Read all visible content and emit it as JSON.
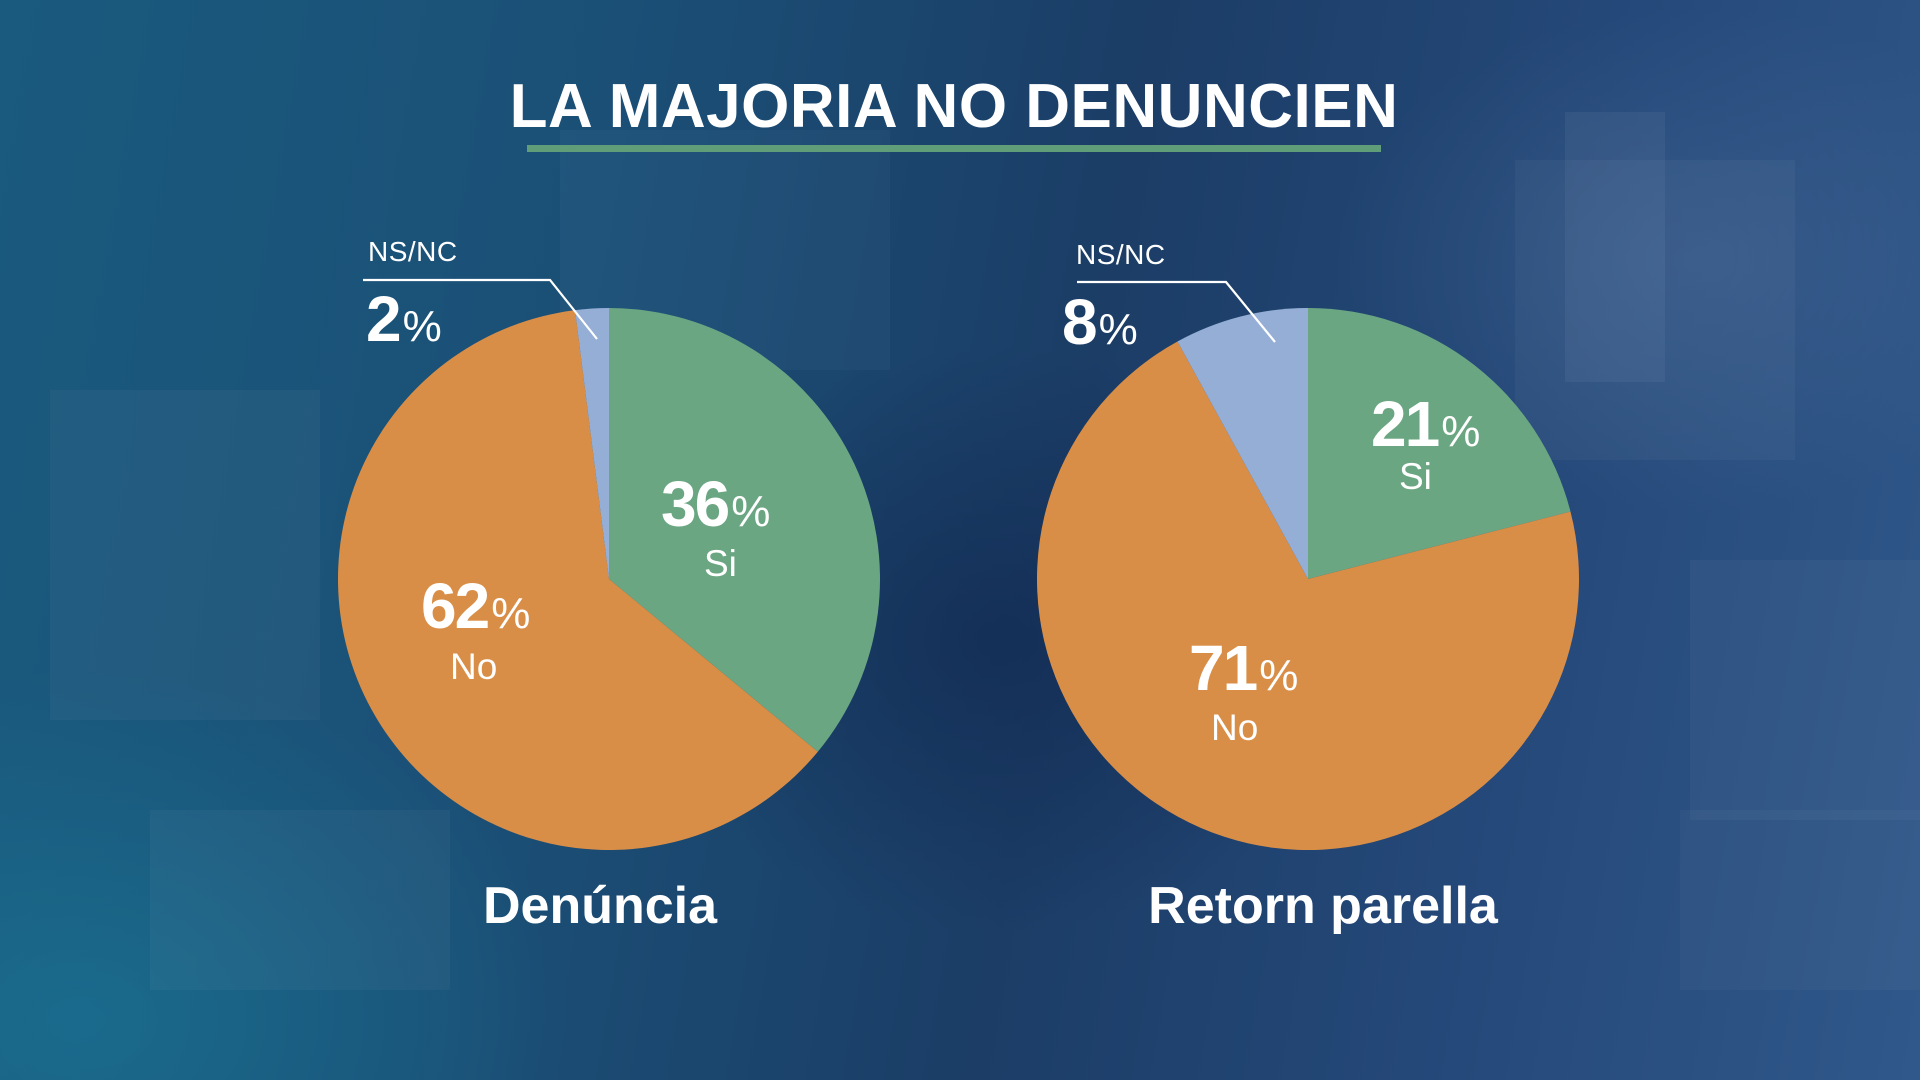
{
  "title": "LA MAJORIA NO DENUNCIEN",
  "colors": {
    "si": "#6aa682",
    "no": "#d98e47",
    "nsnc": "#95aed6",
    "accent_underline": "#5f9e78",
    "text": "#ffffff"
  },
  "percent_sign": "%",
  "charts": [
    {
      "caption": "Denúncia",
      "slices": [
        {
          "key": "si",
          "label": "Si",
          "value": 36,
          "display": "36"
        },
        {
          "key": "no",
          "label": "No",
          "value": 62,
          "display": "62"
        },
        {
          "key": "nsnc",
          "label": "NS/NC",
          "value": 2,
          "display": "2"
        }
      ]
    },
    {
      "caption": "Retorn parella",
      "slices": [
        {
          "key": "si",
          "label": "Si",
          "value": 21,
          "display": "21"
        },
        {
          "key": "no",
          "label": "No",
          "value": 71,
          "display": "71"
        },
        {
          "key": "nsnc",
          "label": "NS/NC",
          "value": 8,
          "display": "8"
        }
      ]
    }
  ],
  "chart_data": [
    {
      "type": "pie",
      "title": "LA MAJORIA NO DENUNCIEN",
      "subtitle": "Denúncia",
      "categories": [
        "Si",
        "No",
        "NS/NC"
      ],
      "values": [
        36,
        62,
        2
      ],
      "unit": "%",
      "colors": [
        "#6aa682",
        "#d98e47",
        "#95aed6"
      ],
      "start_angle": "top, clockwise",
      "legend": "none (direct labels)"
    },
    {
      "type": "pie",
      "title": "LA MAJORIA NO DENUNCIEN",
      "subtitle": "Retorn parella",
      "categories": [
        "Si",
        "No",
        "NS/NC"
      ],
      "values": [
        21,
        71,
        8
      ],
      "unit": "%",
      "colors": [
        "#6aa682",
        "#d98e47",
        "#95aed6"
      ],
      "start_angle": "top, clockwise",
      "legend": "none (direct labels)"
    }
  ]
}
